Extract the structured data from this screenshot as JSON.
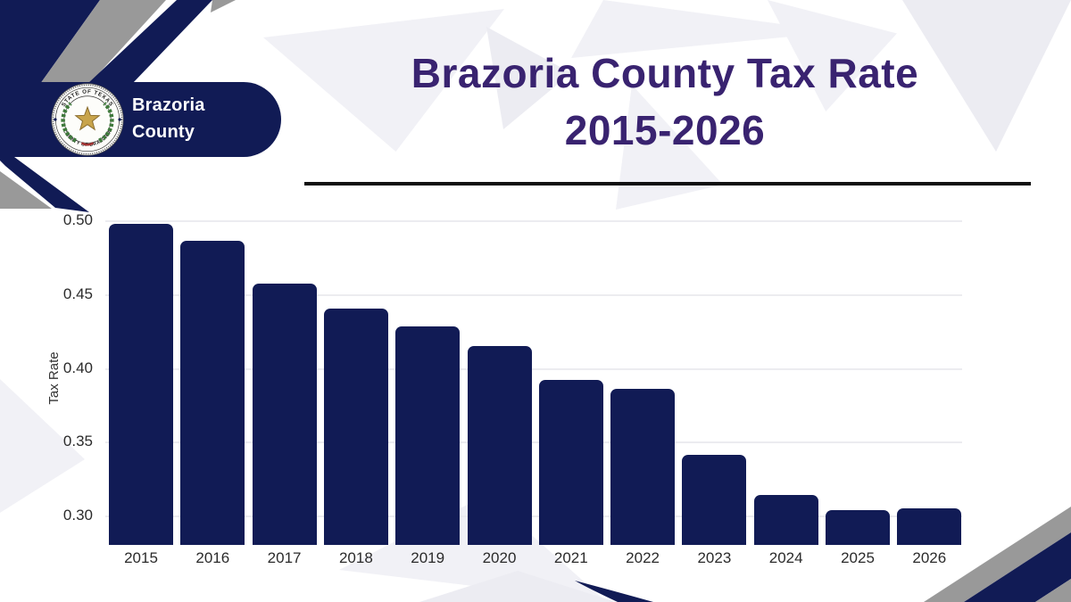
{
  "title": {
    "line1": "Brazoria County Tax Rate",
    "line2": "2015-2026"
  },
  "badge": {
    "line1": "Brazoria",
    "line2": "County"
  },
  "seal": {
    "top_text": "STATE OF TEXAS",
    "bottom_text": "COUNTY OF BRAZORIA"
  },
  "chart_data": {
    "type": "bar",
    "title": "Brazoria County Tax Rate 2015-2026",
    "categories": [
      "2015",
      "2016",
      "2017",
      "2018",
      "2019",
      "2020",
      "2021",
      "2022",
      "2023",
      "2024",
      "2025",
      "2026"
    ],
    "values": [
      0.4975,
      0.486,
      0.457,
      0.44,
      0.428,
      0.415,
      0.392,
      0.386,
      0.341,
      0.314,
      0.3035,
      0.305
    ],
    "xlabel": "",
    "ylabel": "Tax Rate",
    "ylim": [
      0.28,
      0.5055
    ],
    "yticks": [
      0.3,
      0.35,
      0.4,
      0.45,
      0.5
    ],
    "grid": true,
    "legend": false,
    "bar_color": "#111b55"
  },
  "colors": {
    "navy": "#111b55",
    "gray": "#999999",
    "title_text": "#392370",
    "badge_text": "#ffffff",
    "gridline": "#ececf0",
    "axis_text": "#2b2b2b",
    "background_triangles": "#f1f1f6",
    "divider": "#101010",
    "seal_star_gold": "#c8a44b",
    "seal_wreath_green": "#3f7a3c",
    "seal_ribbon_red": "#a03030"
  }
}
